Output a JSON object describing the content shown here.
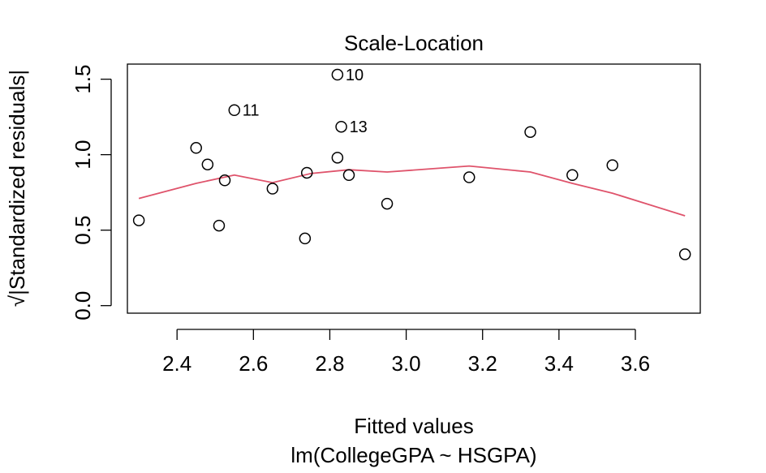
{
  "chart_data": {
    "type": "scatter",
    "title": "Scale-Location",
    "xlabel": "Fitted values",
    "subtitle": "lm(CollegeGPA ~ HSGPA)",
    "ylabel": "√|Standardized residuals|",
    "xlim": [
      2.27,
      3.77
    ],
    "ylim": [
      -0.05,
      1.6
    ],
    "xticks": [
      "2.4",
      "2.6",
      "2.8",
      "3.0",
      "3.2",
      "3.4",
      "3.6"
    ],
    "xtick_values": [
      2.4,
      2.6,
      2.8,
      3.0,
      3.2,
      3.4,
      3.6
    ],
    "yticks": [
      "0.0",
      "0.5",
      "1.0",
      "1.5"
    ],
    "ytick_values": [
      0.0,
      0.5,
      1.0,
      1.5
    ],
    "grid": false,
    "points": [
      {
        "x": 2.3,
        "y": 0.565
      },
      {
        "x": 2.45,
        "y": 1.045
      },
      {
        "x": 2.48,
        "y": 0.935
      },
      {
        "x": 2.51,
        "y": 0.53
      },
      {
        "x": 2.525,
        "y": 0.83
      },
      {
        "x": 2.55,
        "y": 1.295,
        "label": "11"
      },
      {
        "x": 2.65,
        "y": 0.775
      },
      {
        "x": 2.735,
        "y": 0.445
      },
      {
        "x": 2.74,
        "y": 0.88
      },
      {
        "x": 2.82,
        "y": 1.53,
        "label": "10"
      },
      {
        "x": 2.82,
        "y": 0.98
      },
      {
        "x": 2.83,
        "y": 1.185,
        "label": "13"
      },
      {
        "x": 2.85,
        "y": 0.865
      },
      {
        "x": 2.95,
        "y": 0.675
      },
      {
        "x": 3.165,
        "y": 0.85
      },
      {
        "x": 3.325,
        "y": 1.15
      },
      {
        "x": 3.435,
        "y": 0.865
      },
      {
        "x": 3.54,
        "y": 0.93
      },
      {
        "x": 3.73,
        "y": 0.34
      }
    ],
    "smoother": {
      "color": "#DF536B",
      "x": [
        2.3,
        2.45,
        2.55,
        2.65,
        2.75,
        2.85,
        2.95,
        3.165,
        3.325,
        3.435,
        3.54,
        3.73
      ],
      "y": [
        0.71,
        0.81,
        0.865,
        0.815,
        0.875,
        0.9,
        0.885,
        0.925,
        0.885,
        0.81,
        0.745,
        0.595
      ]
    }
  }
}
